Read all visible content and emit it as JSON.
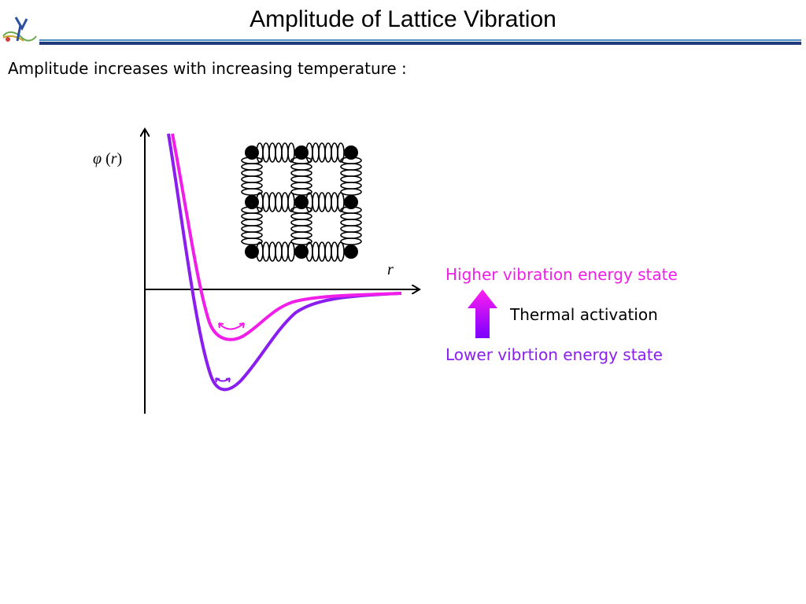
{
  "slide": {
    "title": "Amplitude of Lattice Vibration",
    "subtitle": "Amplitude increases with increasing temperature :"
  },
  "diagram": {
    "y_axis_label_symbol": "φ",
    "y_axis_label_open": " (",
    "y_axis_label_var": "r",
    "y_axis_label_close": ")",
    "x_axis_label": "r",
    "higher_state_label": "Higher vibration energy state",
    "thermal_label": "Thermal activation",
    "lower_state_label": "Lower vibrtion energy state",
    "lattice": {
      "rows": 3,
      "cols": 3
    }
  },
  "colors": {
    "higher_curve": "#f01ee8",
    "lower_curve": "#8a1ef0",
    "arrow_top": "#ff1ef0",
    "arrow_bottom": "#7a00ff",
    "title_rule_dark": "#1f3a7a",
    "title_rule_light": "#4a90c4"
  },
  "icons": {
    "logo": "institution-logo-icon",
    "arrow": "up-arrow-icon"
  }
}
